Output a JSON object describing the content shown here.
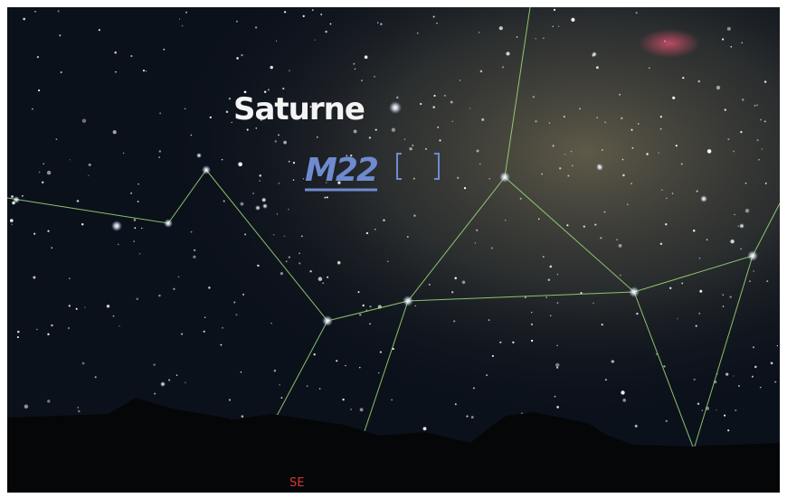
{
  "labels": {
    "planet": "Saturne",
    "object": "M22",
    "cardinal": "SE"
  }
}
